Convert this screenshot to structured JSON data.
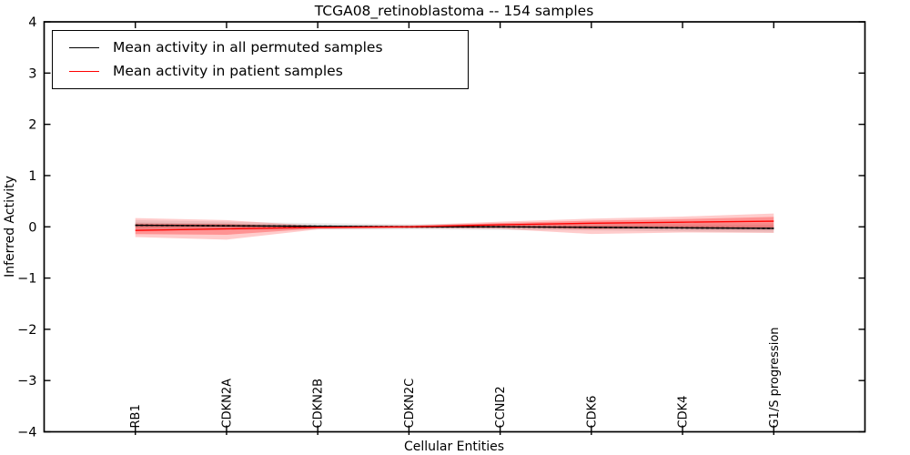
{
  "figure": {
    "title": "TCGA08_retinoblastoma -- 154 samples"
  },
  "chart_data": {
    "type": "line",
    "title": "TCGA08_retinoblastoma -- 154 samples",
    "xlabel": "Cellular Entities",
    "ylabel": "Inferred Activity",
    "ylim": [
      -4,
      4
    ],
    "yticks": [
      4,
      3,
      2,
      1,
      0,
      -1,
      -2,
      -3,
      -4
    ],
    "grid": false,
    "legend_position": "upper left",
    "categories": [
      "RB1",
      "CDKN2A",
      "CDKN2B",
      "CDKN2C",
      "CCND2",
      "CDK6",
      "CDK4",
      "G1/S progression"
    ],
    "series": [
      {
        "name": "Mean activity in all permuted samples",
        "color": "#000000",
        "line_style": "solid-with-dash-overlay",
        "values": [
          0.03,
          0.02,
          0.01,
          0.0,
          0.0,
          -0.01,
          -0.02,
          -0.03
        ],
        "band_upper": [
          0.13,
          0.1,
          0.07,
          0.05,
          0.06,
          0.07,
          0.07,
          0.07
        ],
        "band_lower": [
          -0.07,
          -0.06,
          -0.05,
          -0.05,
          -0.06,
          -0.07,
          -0.09,
          -0.11
        ],
        "band_color": "#999999"
      },
      {
        "name": "Mean activity in patient samples",
        "color": "#ff0000",
        "line_style": "solid",
        "values": [
          -0.07,
          -0.04,
          -0.01,
          0.0,
          0.04,
          0.07,
          0.09,
          0.11
        ],
        "band_upper": [
          0.17,
          0.13,
          0.02,
          0.03,
          0.1,
          0.16,
          0.2,
          0.26
        ],
        "band_lower": [
          -0.2,
          -0.25,
          -0.05,
          -0.03,
          -0.04,
          -0.14,
          -0.11,
          -0.12
        ],
        "band_color": "#ff0000"
      }
    ]
  }
}
